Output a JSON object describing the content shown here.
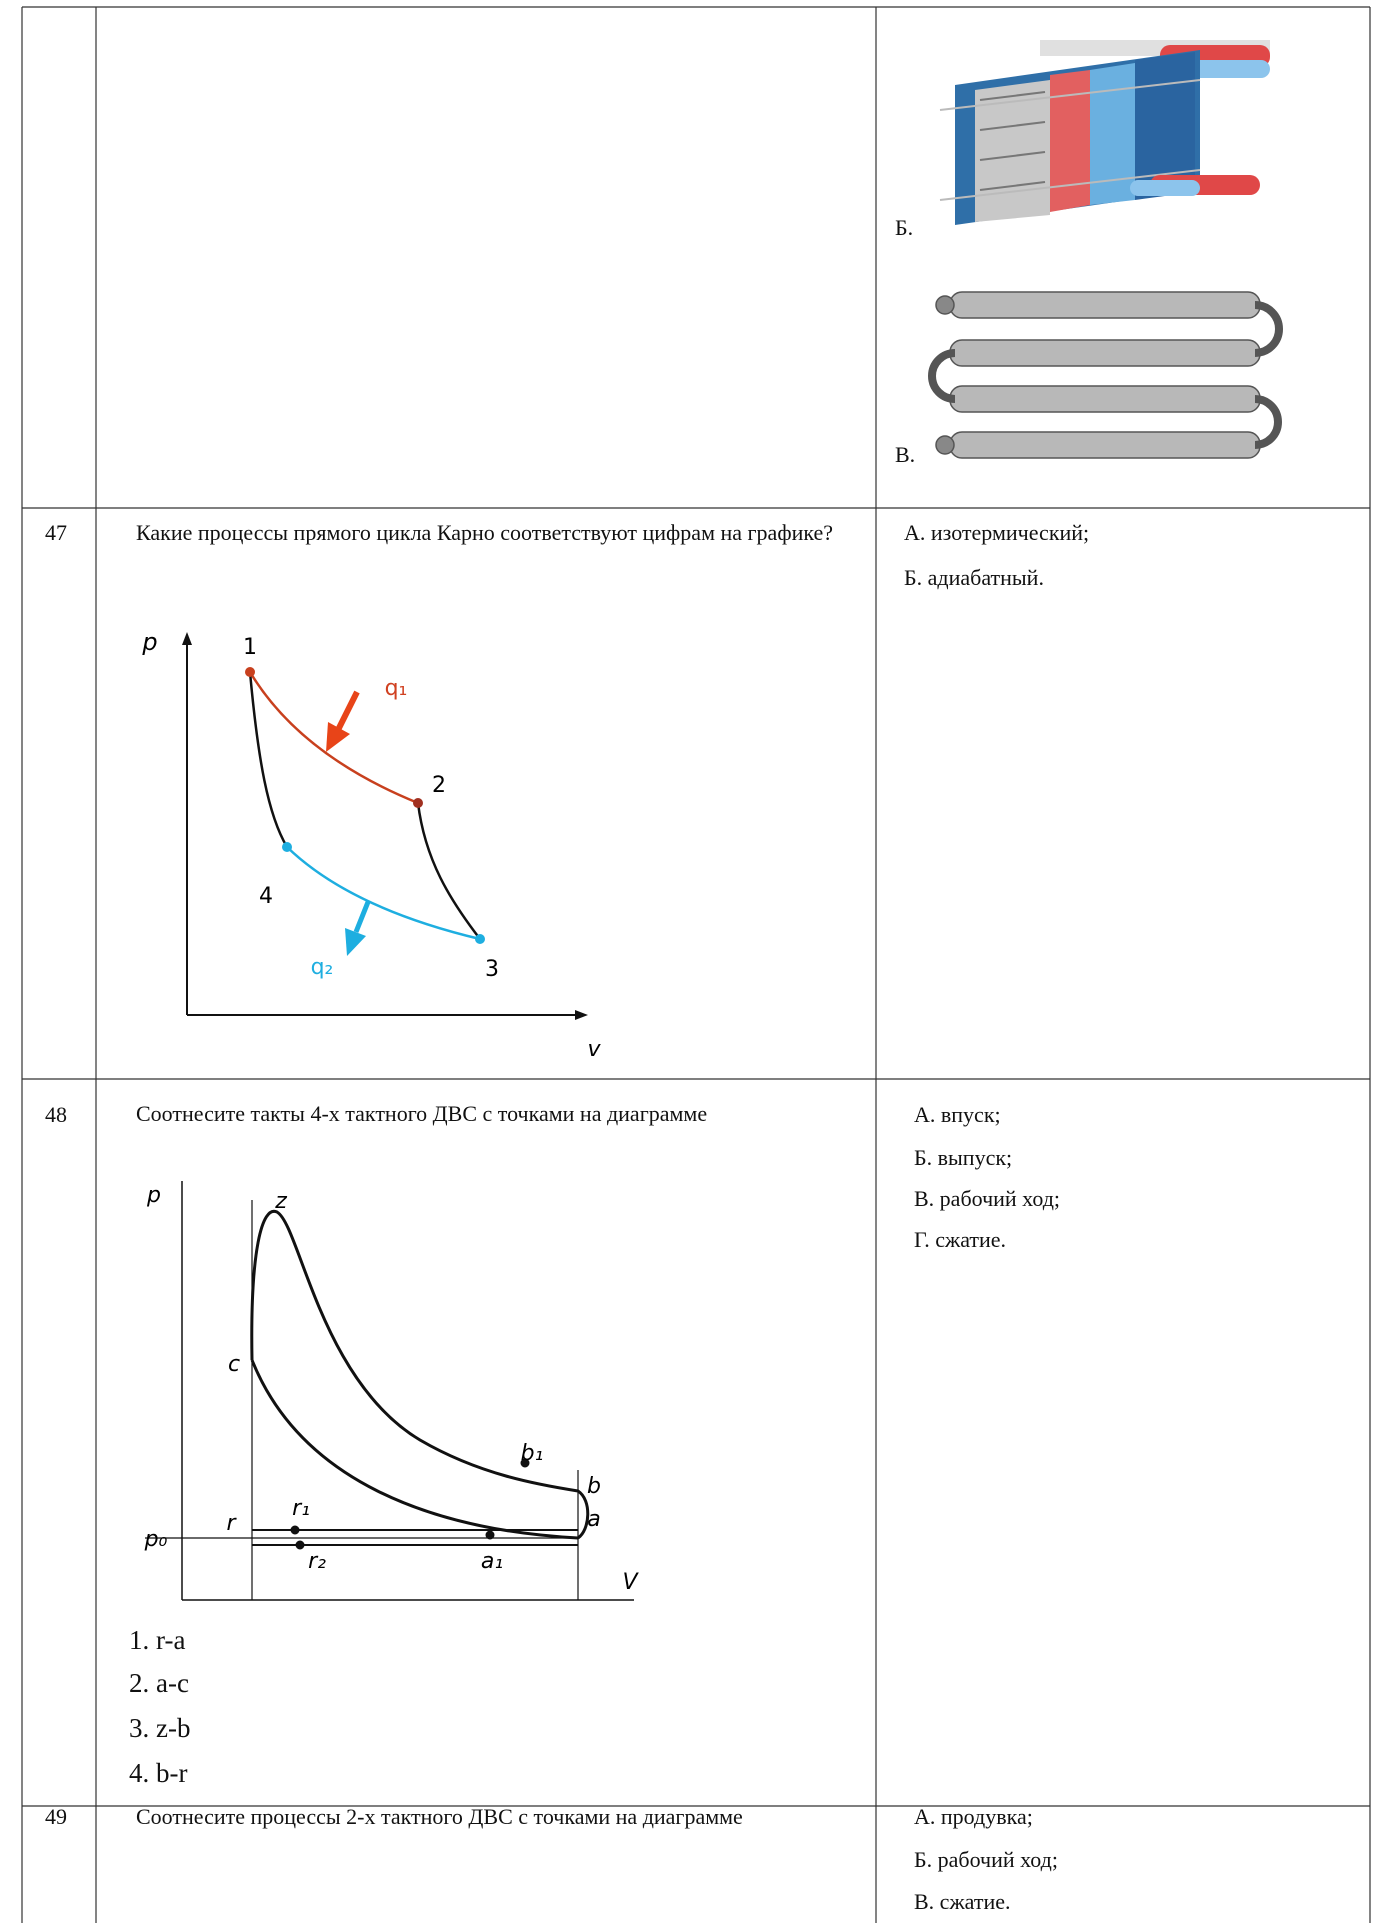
{
  "rows": [
    {
      "answers": [
        "Б.",
        "В."
      ]
    },
    {
      "number": "47",
      "question": "Какие процессы прямого цикла Карно соответствуют цифрам на графике?",
      "answers": [
        "А. изотермический;",
        "Б. адиабатный."
      ],
      "diagram": {
        "labels": [
          "p",
          "1",
          "q₁",
          "2",
          "4",
          "q₂",
          "3",
          "v"
        ]
      }
    },
    {
      "number": "48",
      "question": "Соотнесите такты 4-х тактного ДВС с точками на диаграмме",
      "answers": [
        "А. впуск;",
        "Б. выпуск;",
        "В. рабочий ход;",
        "Г. сжатие."
      ],
      "diagram": {
        "labels": [
          "p",
          "z",
          "c",
          "b₁",
          "b",
          "r",
          "r₁",
          "p₀",
          "r₂",
          "a₁",
          "a",
          "V"
        ]
      },
      "options": [
        "1. r-a",
        "2. a-c",
        "3. z-b",
        "4. b-r"
      ]
    },
    {
      "number": "49",
      "question": "Соотнесите процессы 2-х тактного ДВС с точками на диаграмме",
      "answers": [
        "А. продувка;",
        "Б. рабочий ход;",
        "В. сжатие."
      ]
    }
  ]
}
